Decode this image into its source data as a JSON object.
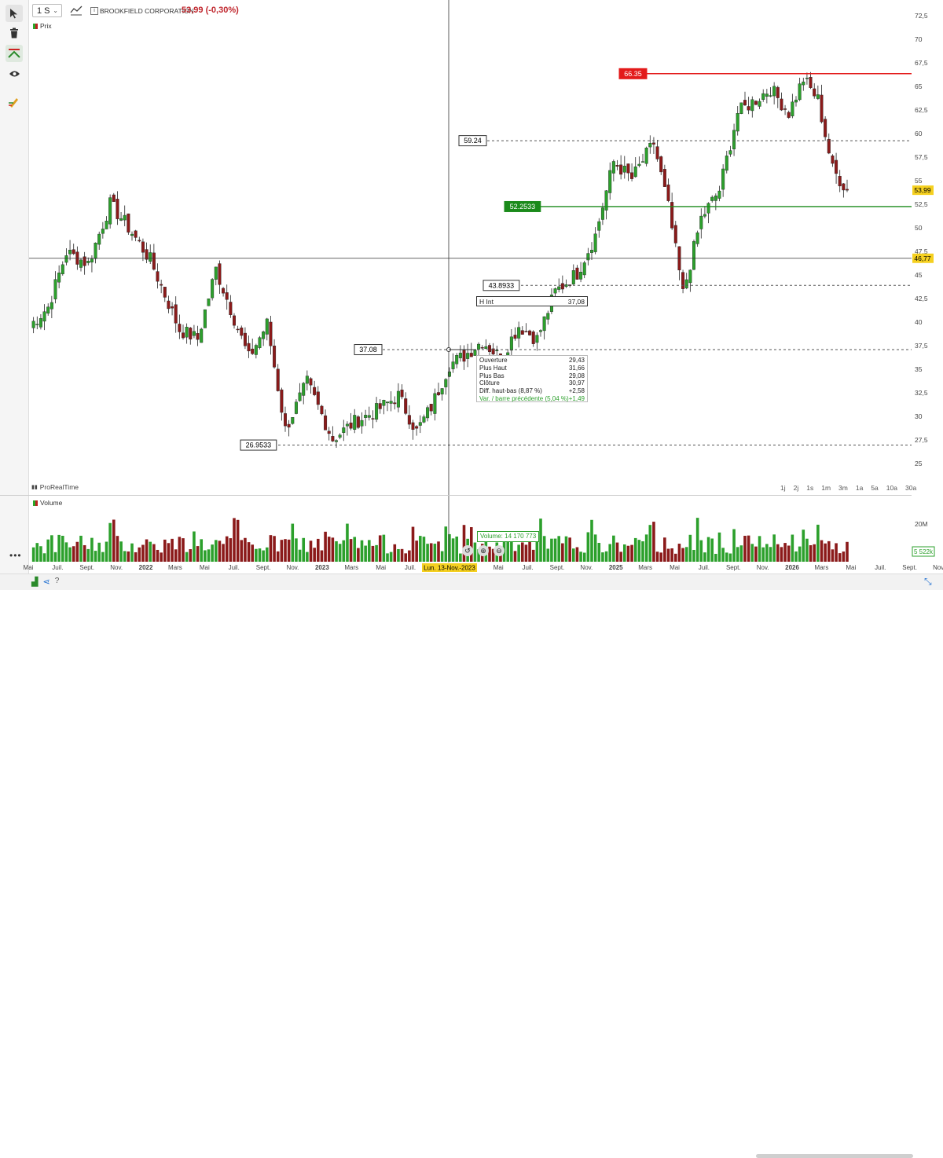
{
  "header": {
    "timeframe": "1 S",
    "instrument": "BROOKFIELD CORPORATION",
    "last_change": "53,99 (-0,30%)"
  },
  "panels": {
    "price_label": "Prix",
    "volume_label": "Volume",
    "watermark": "ProRealTime"
  },
  "timeframe_buttons": [
    "1j",
    "2j",
    "1s",
    "1m",
    "3m",
    "1a",
    "5a",
    "10a",
    "30a"
  ],
  "ohlc_tooltip": {
    "rows": [
      {
        "label": "Ouverture",
        "value": "29,43"
      },
      {
        "label": "Plus Haut",
        "value": "31,66"
      },
      {
        "label": "Plus Bas",
        "value": "29,08"
      },
      {
        "label": "Clôture",
        "value": "30,97"
      },
      {
        "label": "Diff. haut-bas (8,87 %)",
        "value": "+2,58"
      },
      {
        "label": "Var. / barre précédente (5,04 %)",
        "value": "+1,49"
      }
    ]
  },
  "annotations": {
    "hline_label": "H Int",
    "hline_value": "37,08",
    "cursor_date": "Lun. 13-Nov.-2023",
    "cursor_price": "46,77",
    "last_price": "53,99",
    "volume_tag": "Volume: 14 170 773",
    "volume_last": "5 522k"
  },
  "colors": {
    "up": "#2ca02c",
    "down": "#8b1a1a",
    "red_line": "#e31b1b",
    "green_line": "#1a8a1a",
    "last_badge": "#f5d020"
  },
  "chart_data": {
    "type": "candlestick",
    "y_ticks": [
      25,
      27.5,
      30,
      32.5,
      35,
      37.5,
      40,
      42.5,
      45,
      47.5,
      50,
      52.5,
      55,
      57.5,
      60,
      62.5,
      65,
      67.5,
      70,
      72.5
    ],
    "y_tick_labels": [
      "25",
      "27,5",
      "30",
      "32,5",
      "35",
      "37,5",
      "40",
      "42,5",
      "45",
      "47,5",
      "50",
      "52,5",
      "55",
      "57,5",
      "60",
      "62,5",
      "65",
      "67,5",
      "70",
      "72,5"
    ],
    "ylim": [
      23.5,
      73.5
    ],
    "volume_tick": {
      "label": "20M",
      "value": 20
    },
    "x_tick_labels": [
      "Mai",
      "Juil.",
      "Sept.",
      "Nov.",
      "2022",
      "Mars",
      "Mai",
      "Juil.",
      "Sept.",
      "Nov.",
      "2023",
      "Mars",
      "Mai",
      "Juil.",
      "Sept.",
      "Mars",
      "Mai",
      "Juil.",
      "Sept.",
      "Nov.",
      "2025",
      "Mars",
      "Mai",
      "Juil.",
      "Sept.",
      "Nov.",
      "2026",
      "Mars",
      "Mai",
      "Juil.",
      "Sept.",
      "Nov."
    ],
    "levels": [
      {
        "value": 66.35,
        "label": "66.35",
        "style": "red-solid"
      },
      {
        "value": 59.24,
        "label": "59.24",
        "style": "dashed"
      },
      {
        "value": 52.2533,
        "label": "52.2533",
        "style": "green-solid"
      },
      {
        "value": 43.8933,
        "label": "43.8933",
        "style": "dashed"
      },
      {
        "value": 37.08,
        "label": "37.08",
        "style": "dashed"
      },
      {
        "value": 26.9533,
        "label": "26.9533",
        "style": "dashed"
      }
    ],
    "crosshair_price": 46.77,
    "last_close": 53.99,
    "anchors": [
      {
        "i": 0,
        "c": 39.6
      },
      {
        "i": 5,
        "c": 41.6
      },
      {
        "i": 10,
        "c": 47.4
      },
      {
        "i": 16,
        "c": 46.2
      },
      {
        "i": 22,
        "c": 52.5
      },
      {
        "i": 26,
        "c": 50.6
      },
      {
        "i": 33,
        "c": 46.6
      },
      {
        "i": 41,
        "c": 39.2
      },
      {
        "i": 46,
        "c": 38.2
      },
      {
        "i": 51,
        "c": 45.6
      },
      {
        "i": 60,
        "c": 36.2
      },
      {
        "i": 65,
        "c": 39.8
      },
      {
        "i": 70,
        "c": 28.6
      },
      {
        "i": 76,
        "c": 33.6
      },
      {
        "i": 83,
        "c": 27.6
      },
      {
        "i": 89,
        "c": 29.4
      },
      {
        "i": 95,
        "c": 30.6
      },
      {
        "i": 101,
        "c": 32.2
      },
      {
        "i": 106,
        "c": 28.4
      },
      {
        "i": 110,
        "c": 31.0
      },
      {
        "i": 115,
        "c": 35.5
      },
      {
        "i": 119,
        "c": 36.4
      },
      {
        "i": 124,
        "c": 38.0
      },
      {
        "i": 129,
        "c": 36.2
      },
      {
        "i": 134,
        "c": 39.6
      },
      {
        "i": 139,
        "c": 38.2
      },
      {
        "i": 144,
        "c": 43.2
      },
      {
        "i": 150,
        "c": 45.2
      },
      {
        "i": 155,
        "c": 49.2
      },
      {
        "i": 160,
        "c": 57.0
      },
      {
        "i": 165,
        "c": 55.2
      },
      {
        "i": 171,
        "c": 59.0
      },
      {
        "i": 175,
        "c": 52.2
      },
      {
        "i": 179,
        "c": 43.0
      },
      {
        "i": 184,
        "c": 51.0
      },
      {
        "i": 189,
        "c": 54.0
      },
      {
        "i": 194,
        "c": 62.2
      },
      {
        "i": 199,
        "c": 63.6
      },
      {
        "i": 203,
        "c": 64.8
      },
      {
        "i": 208,
        "c": 62.2
      },
      {
        "i": 212,
        "c": 65.8
      },
      {
        "i": 216,
        "c": 63.6
      },
      {
        "i": 220,
        "c": 56.2
      },
      {
        "i": 224,
        "c": 53.99
      }
    ],
    "n_bars": 225
  }
}
